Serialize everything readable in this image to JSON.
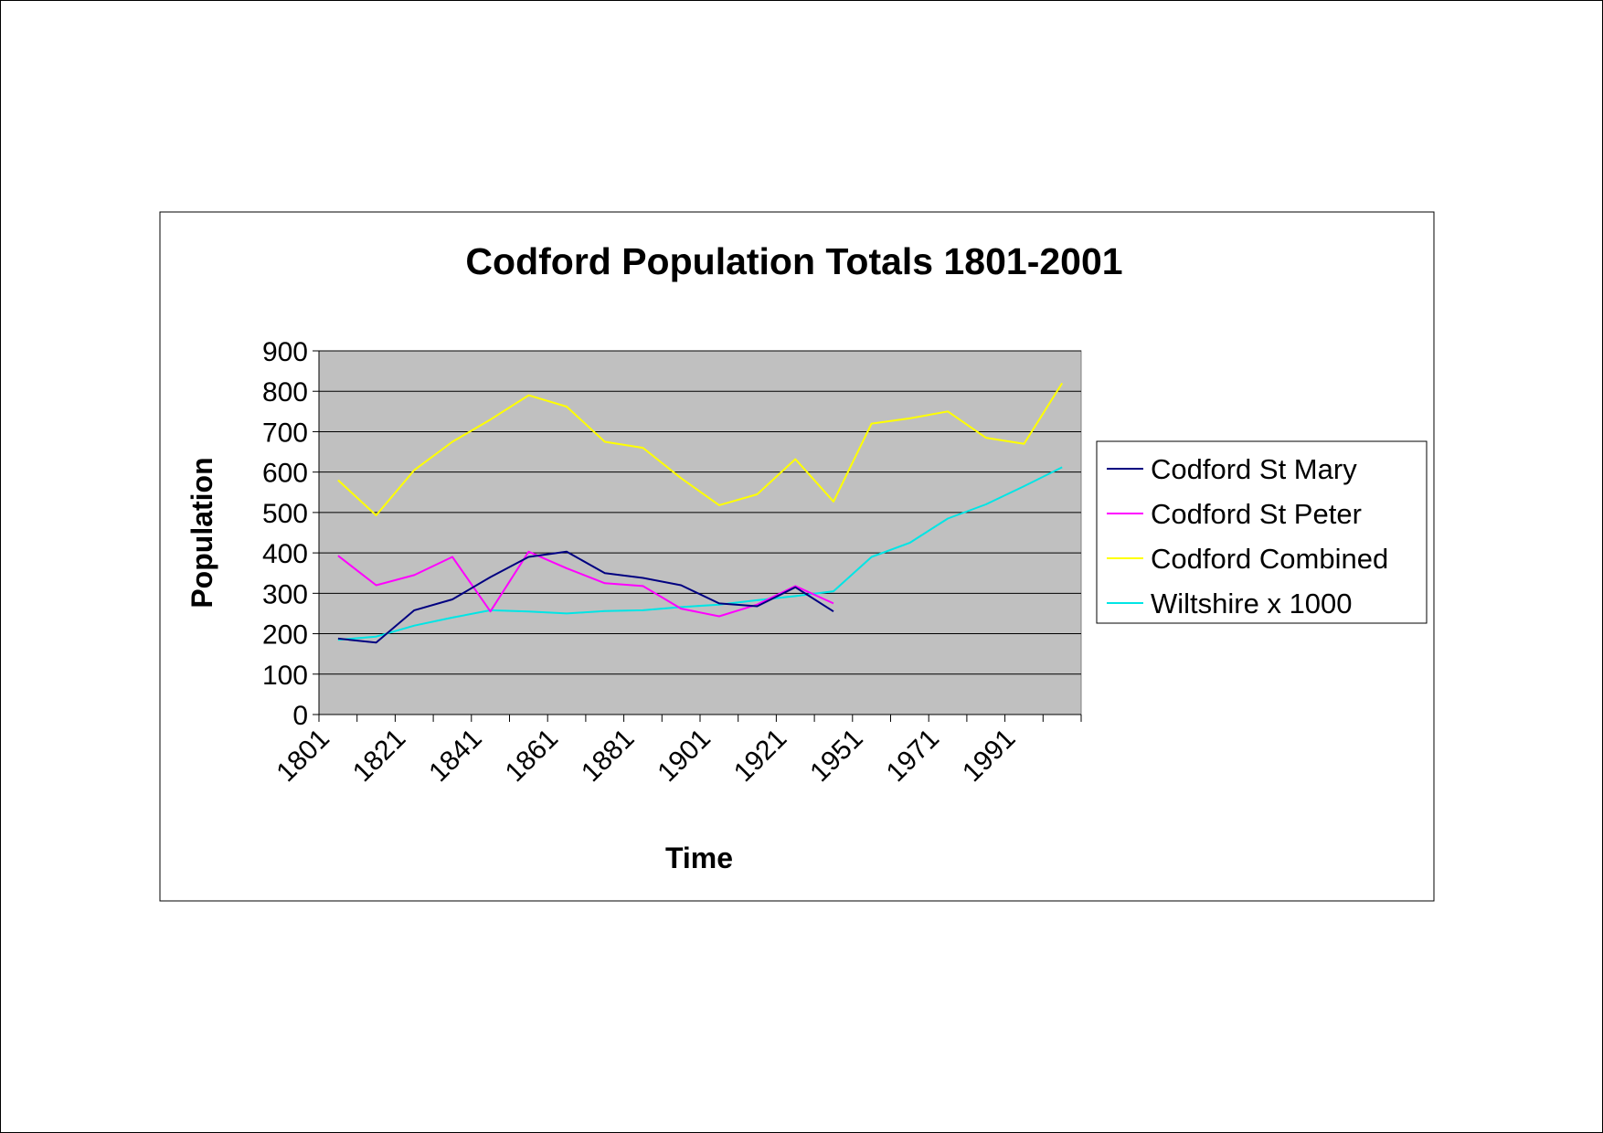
{
  "chart_data": {
    "type": "line",
    "title": "Codford Population Totals 1801-2001",
    "xlabel": "Time",
    "ylabel": "Population",
    "ylim": [
      0,
      900
    ],
    "yticks": [
      0,
      100,
      200,
      300,
      400,
      500,
      600,
      700,
      800,
      900
    ],
    "x": [
      1801,
      1811,
      1821,
      1831,
      1841,
      1851,
      1861,
      1871,
      1881,
      1891,
      1901,
      1911,
      1921,
      1931,
      1951,
      1961,
      1971,
      1981,
      1991,
      2001
    ],
    "xtick_labels": [
      "1801",
      "1821",
      "1841",
      "1861",
      "1881",
      "1901",
      "1921",
      "1951",
      "1971",
      "1991"
    ],
    "xtick_label_positions": [
      0,
      2,
      4,
      6,
      8,
      10,
      12,
      14,
      16,
      18
    ],
    "grid": true,
    "legend_position": "right",
    "plot_background": "#c0c0c0",
    "series": [
      {
        "name": "Codford St Mary",
        "color": "#000080",
        "values": [
          188,
          178,
          258,
          285,
          340,
          390,
          403,
          350,
          338,
          320,
          275,
          268,
          315,
          255,
          null,
          null,
          null,
          null,
          null,
          null
        ]
      },
      {
        "name": "Codford St Peter",
        "color": "#ff00ff",
        "values": [
          393,
          320,
          345,
          390,
          255,
          403,
          362,
          325,
          318,
          262,
          243,
          272,
          318,
          275,
          null,
          null,
          null,
          null,
          null,
          null
        ]
      },
      {
        "name": "Codford Combined",
        "color": "#ffff00",
        "values": [
          580,
          493,
          605,
          675,
          730,
          790,
          762,
          675,
          660,
          585,
          518,
          545,
          632,
          527,
          720,
          733,
          750,
          685,
          670,
          820
        ]
      },
      {
        "name": "Wiltshire x 1000",
        "color": "#00e5e5",
        "values": [
          185,
          193,
          220,
          240,
          258,
          255,
          250,
          256,
          258,
          266,
          272,
          283,
          293,
          305,
          390,
          425,
          485,
          520,
          565,
          612
        ]
      }
    ]
  }
}
